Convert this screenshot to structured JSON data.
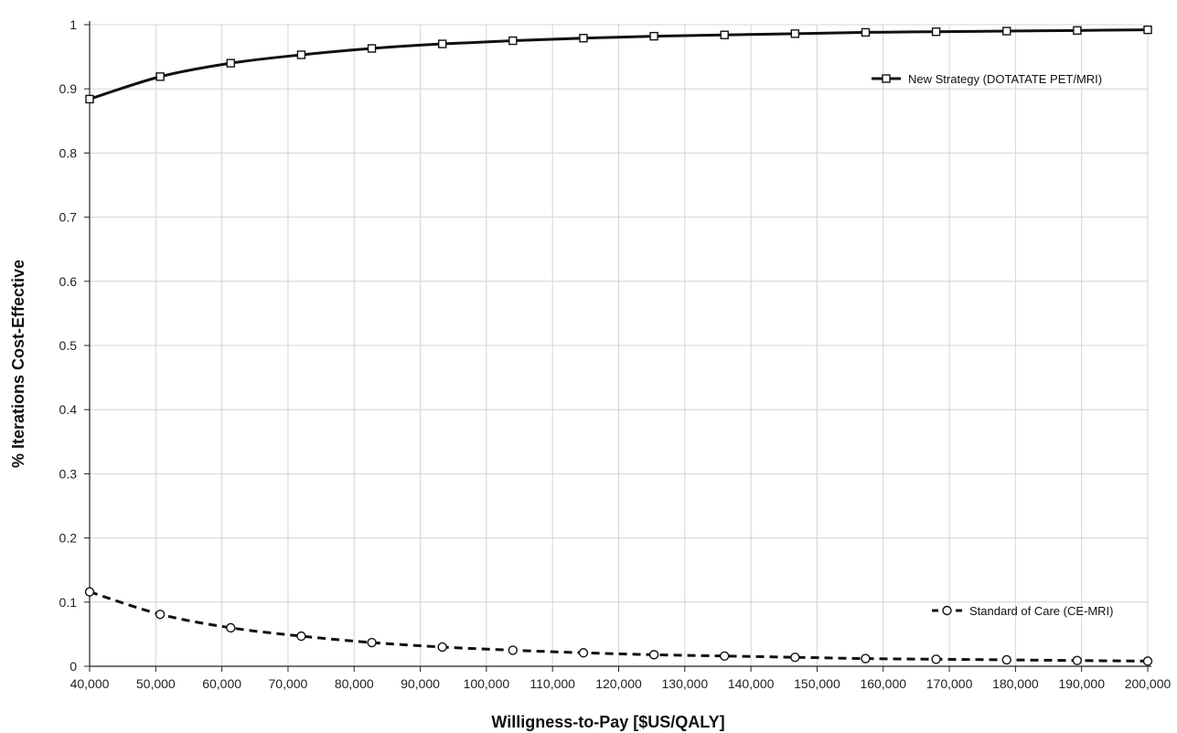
{
  "chart_data": {
    "type": "line",
    "xlabel": "Willigness-to-Pay [$US/QALY]",
    "ylabel": "% Iterations Cost-Effective",
    "xlim": [
      40000,
      200000
    ],
    "ylim": [
      0,
      1
    ],
    "grid": true,
    "legend_position": "right",
    "x_ticks": [
      "40,000",
      "50,000",
      "60,000",
      "70,000",
      "80,000",
      "90,000",
      "100,000",
      "110,000",
      "120,000",
      "130,000",
      "140,000",
      "150,000",
      "160,000",
      "170,000",
      "180,000",
      "190,000",
      "200,000"
    ],
    "y_ticks": [
      "0",
      "0.1",
      "0.2",
      "0.3",
      "0.4",
      "0.5",
      "0.6",
      "0.7",
      "0.8",
      "0.9",
      "1"
    ],
    "x": [
      40000,
      50667,
      61333,
      72000,
      82667,
      93333,
      104000,
      114667,
      125333,
      136000,
      146667,
      157333,
      168000,
      178667,
      189333,
      200000
    ],
    "series": [
      {
        "name": "New Strategy (DOTATATE PET/MRI)",
        "line_style": "solid",
        "marker": "square",
        "color": "#111111",
        "values": [
          0.884,
          0.919,
          0.94,
          0.953,
          0.963,
          0.97,
          0.975,
          0.979,
          0.982,
          0.984,
          0.986,
          0.988,
          0.989,
          0.99,
          0.991,
          0.992
        ]
      },
      {
        "name": "Standard of Care (CE-MRI)",
        "line_style": "dashed",
        "marker": "circle",
        "color": "#111111",
        "values": [
          0.116,
          0.081,
          0.06,
          0.047,
          0.037,
          0.03,
          0.025,
          0.021,
          0.018,
          0.016,
          0.014,
          0.012,
          0.011,
          0.01,
          0.009,
          0.008
        ]
      }
    ]
  }
}
